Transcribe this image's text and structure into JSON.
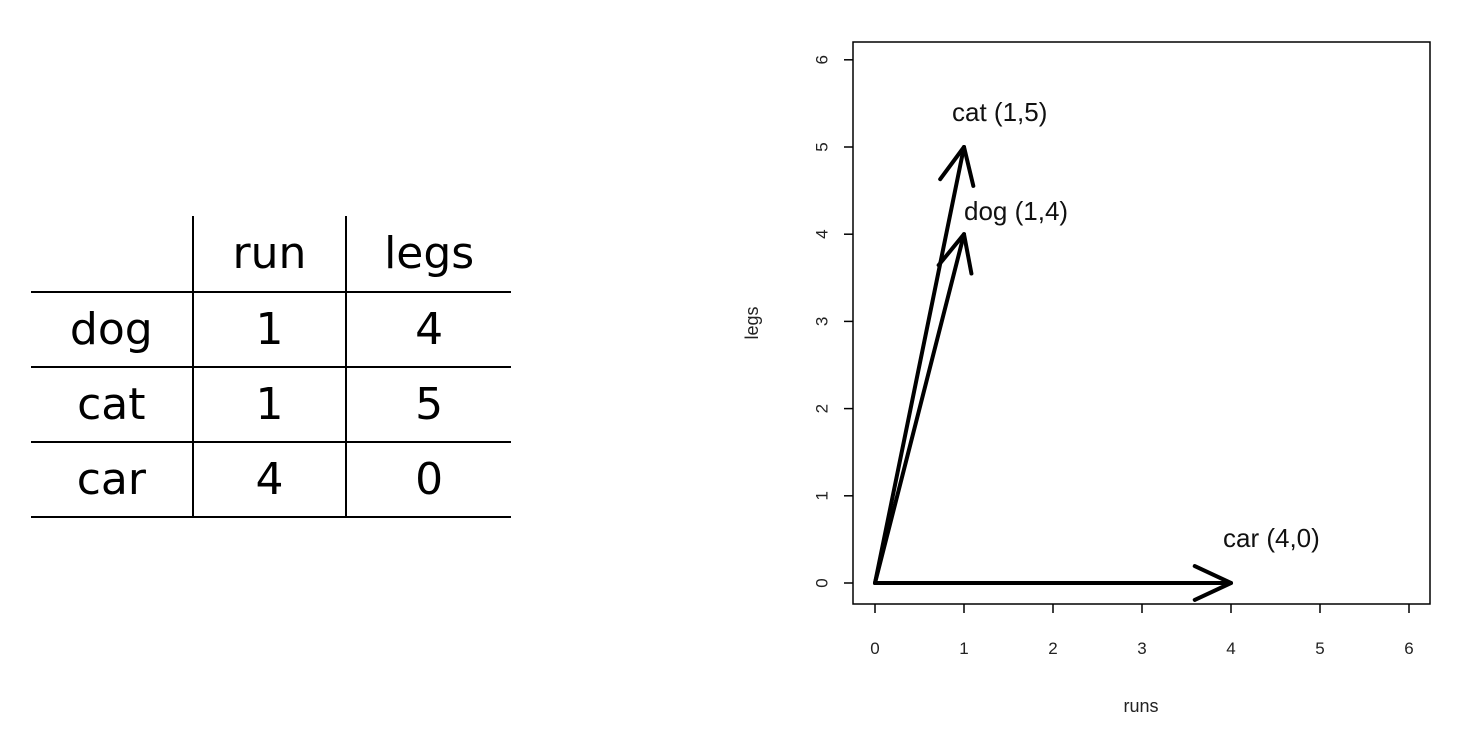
{
  "table": {
    "header": [
      "",
      "run",
      "legs"
    ],
    "rows": [
      [
        "dog",
        "1",
        "4"
      ],
      [
        "cat",
        "1",
        "5"
      ],
      [
        "car",
        "4",
        "0"
      ]
    ]
  },
  "chart_data": {
    "type": "vector",
    "title": "",
    "xlabel": "runs",
    "ylabel": "legs",
    "xlim": [
      0,
      6
    ],
    "ylim": [
      0,
      6
    ],
    "xticks": [
      0,
      1,
      2,
      3,
      4,
      5,
      6
    ],
    "yticks": [
      0,
      1,
      2,
      3,
      4,
      5,
      6
    ],
    "grid": false,
    "vectors": [
      {
        "label": "cat (1,5)",
        "from": [
          0,
          0
        ],
        "to": [
          1,
          5
        ]
      },
      {
        "label": "dog (1,4)",
        "from": [
          0,
          0
        ],
        "to": [
          1,
          4
        ]
      },
      {
        "label": "car (4,0)",
        "from": [
          0,
          0
        ],
        "to": [
          4,
          0
        ]
      }
    ],
    "colors": {
      "vector": "#000000",
      "axis": "#000000"
    }
  }
}
